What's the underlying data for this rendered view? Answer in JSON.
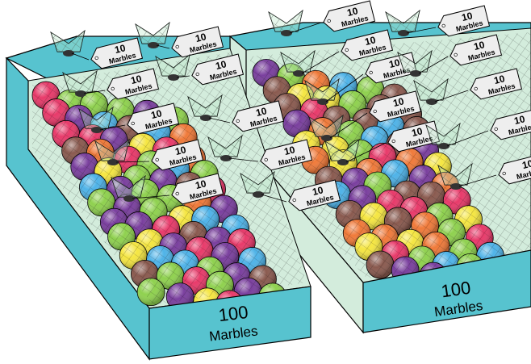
{
  "trays": [
    {
      "front_count": "100",
      "front_unit": "Marbles",
      "bags": [
        {
          "count": "10",
          "unit": "Marbles"
        },
        {
          "count": "10",
          "unit": "Marbles"
        },
        {
          "count": "10",
          "unit": "Marbles"
        },
        {
          "count": "10",
          "unit": "Marbles"
        },
        {
          "count": "10",
          "unit": "Marbles"
        },
        {
          "count": "10",
          "unit": "Marbles"
        },
        {
          "count": "10",
          "unit": "Marbles"
        },
        {
          "count": "10",
          "unit": "Marbles"
        },
        {
          "count": "10",
          "unit": "Marbles"
        },
        {
          "count": "10",
          "unit": "Marbles"
        }
      ]
    },
    {
      "front_count": "100",
      "front_unit": "Marbles",
      "bags": [
        {
          "count": "10",
          "unit": "Marbles"
        },
        {
          "count": "10",
          "unit": "Marbles"
        },
        {
          "count": "10",
          "unit": "Marbles"
        },
        {
          "count": "10",
          "unit": "Marbles"
        },
        {
          "count": "10",
          "unit": "Marbles"
        },
        {
          "count": "10",
          "unit": "Marbles"
        },
        {
          "count": "10",
          "unit": "Marbles"
        },
        {
          "count": "10",
          "unit": "Marbles"
        },
        {
          "count": "10",
          "unit": "Marbles"
        },
        {
          "count": "10",
          "unit": "Marbles"
        }
      ]
    }
  ],
  "colors": {
    "tray_side": "#57c3cf",
    "tray_inner": "#d3ecdc",
    "tray_front": "#57c3cf",
    "tag_fill": "#eeeeee",
    "marble_colors": [
      "#7a3f9e",
      "#8a5a4f",
      "#e83a6a",
      "#8fd14f",
      "#f07a3a",
      "#4fb3e8",
      "#f5e642"
    ]
  }
}
